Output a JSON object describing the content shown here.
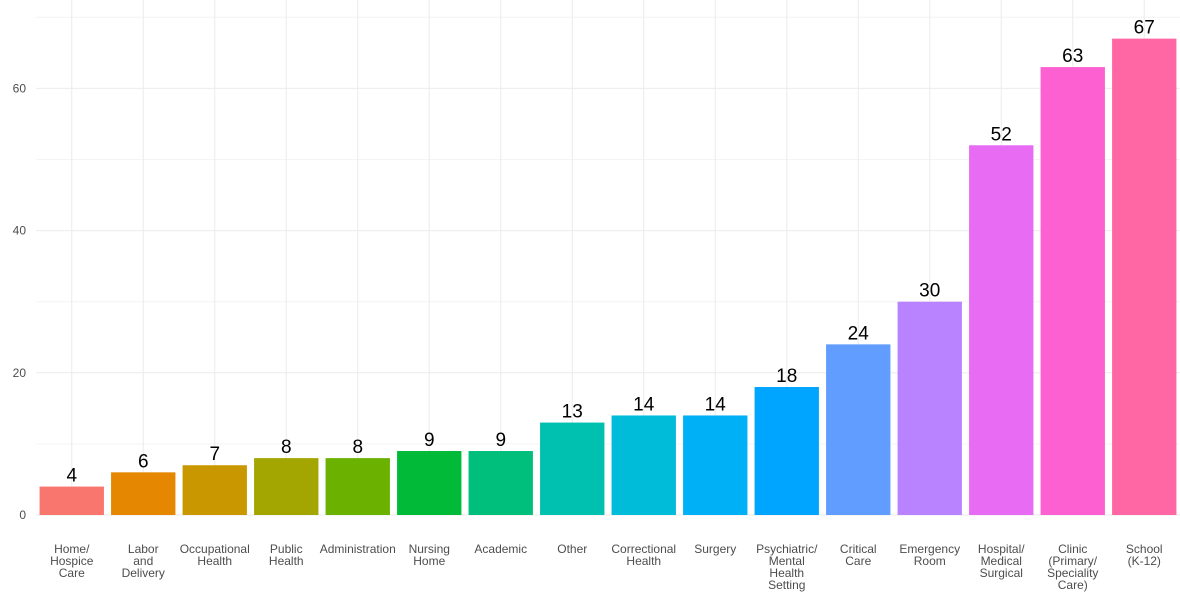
{
  "chart_data": {
    "type": "bar",
    "title": "",
    "xlabel": "",
    "ylabel": "",
    "ylim": [
      0,
      67
    ],
    "yticks": [
      0,
      20,
      40,
      60
    ],
    "grid": true,
    "legend": "none",
    "categories": [
      [
        "Home/",
        "Hospice",
        "Care"
      ],
      [
        "Labor",
        "and",
        "Delivery"
      ],
      [
        "Occupational",
        "Health"
      ],
      [
        "Public",
        "Health"
      ],
      [
        "Administration"
      ],
      [
        "Nursing",
        "Home"
      ],
      [
        "Academic"
      ],
      [
        "Other"
      ],
      [
        "Correctional",
        "Health"
      ],
      [
        "Surgery"
      ],
      [
        "Psychiatric/",
        "Mental",
        "Health",
        "Setting"
      ],
      [
        "Critical",
        "Care"
      ],
      [
        "Emergency",
        "Room"
      ],
      [
        "Hospital/",
        "Medical",
        "Surgical"
      ],
      [
        "Clinic",
        "(Primary/",
        "Speciality",
        "Care)"
      ],
      [
        "School",
        "(K-12)"
      ]
    ],
    "values": [
      4,
      6,
      7,
      8,
      8,
      9,
      9,
      13,
      14,
      14,
      18,
      24,
      30,
      52,
      63,
      67
    ],
    "colors": [
      "#f8766d",
      "#e58700",
      "#c99800",
      "#a3a500",
      "#6bb100",
      "#00ba38",
      "#00bf7d",
      "#00c0af",
      "#00bcd8",
      "#00b0f6",
      "#00a5ff",
      "#619cff",
      "#b983ff",
      "#e76bf3",
      "#fd61d1",
      "#ff67a4"
    ]
  }
}
